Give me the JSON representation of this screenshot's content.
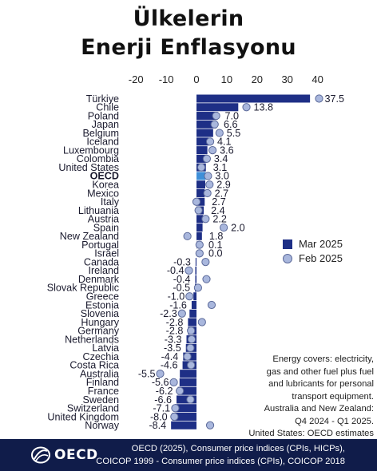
{
  "title": {
    "line1": "Ülkelerin",
    "line2": "Enerji Enflasyonu"
  },
  "chart_data": {
    "type": "bar",
    "orientation": "horizontal",
    "categories": [
      "Türkiye",
      "Chile",
      "Poland",
      "Japan",
      "Belgium",
      "Iceland",
      "Luxembourg",
      "Colombia",
      "United States",
      "OECD",
      "Korea",
      "Mexico",
      "Italy",
      "Lithuania",
      "Austria",
      "Spain",
      "New Zealand",
      "Portugal",
      "Israel",
      "Canada",
      "Ireland",
      "Denmark",
      "Slovak Republic",
      "Greece",
      "Estonia",
      "Slovenia",
      "Hungary",
      "Germany",
      "Netherlands",
      "Latvia",
      "Czechia",
      "Costa Rica",
      "Australia",
      "Finland",
      "France",
      "Sweden",
      "Switzerland",
      "United Kingdom",
      "Norway"
    ],
    "series": [
      {
        "name": "Mar 2025",
        "values": [
          37.5,
          13.8,
          7.0,
          6.6,
          5.5,
          4.1,
          3.6,
          3.4,
          3.1,
          3.0,
          2.9,
          2.7,
          2.7,
          2.4,
          2.2,
          2.0,
          1.8,
          0.1,
          0.0,
          -0.3,
          -0.4,
          -0.4,
          -0.5,
          -1.0,
          -1.6,
          -2.3,
          -2.8,
          -2.8,
          -3.3,
          -3.5,
          -4.4,
          -4.6,
          -5.5,
          -5.6,
          -6.2,
          -6.6,
          -7.1,
          -8.0,
          -8.4
        ]
      },
      {
        "name": "Feb 2025",
        "values": [
          40.5,
          16.5,
          6.5,
          6.0,
          7.6,
          4.5,
          5.3,
          3.4,
          1.6,
          3.8,
          4.3,
          3.6,
          0.0,
          0.7,
          3.0,
          9.0,
          -3.0,
          1.0,
          1.0,
          3.0,
          -2.5,
          3.3,
          0.5,
          -2.3,
          5.0,
          -4.8,
          1.8,
          -1.8,
          -1.6,
          -2.0,
          -3.0,
          -1.8,
          -12.0,
          -7.5,
          -5.5,
          -2.0,
          -7.0,
          -7.3,
          4.5
        ]
      }
    ],
    "value_labels": [
      "37.5",
      "13.8",
      "7.0",
      "6.6",
      "5.5",
      "4.1",
      "3.6",
      "3.4",
      "3.1",
      "3.0",
      "2.9",
      "2.7",
      "2.7",
      "2.4",
      "2.2",
      "2.0",
      "1.8",
      "0.1",
      "0.0",
      "-0.3",
      "-0.4",
      "-0.4",
      "-0.5",
      "-1.0",
      "-1.6",
      "-2.3",
      "-2.8",
      "-2.8",
      "-3.3",
      "-3.5",
      "-4.4",
      "-4.6",
      "-5.5",
      "-5.6",
      "-6.2",
      "-6.6",
      "-7.1",
      "-8.0",
      "-8.4"
    ],
    "highlight": "OECD",
    "x_ticks": [
      -20,
      -10,
      0,
      10,
      20,
      30,
      40
    ],
    "xlim": [
      -21,
      42
    ],
    "grid": false,
    "legend_placement": "right-middle",
    "xlabel": "",
    "ylabel": ""
  },
  "legend": {
    "bar_label": "Mar 2025",
    "dot_label": "Feb 2025"
  },
  "note": [
    "Energy covers: electricity,",
    "gas and other fuel plus fuel",
    "and lubricants for personal",
    "transport equipment.",
    "Australia and New Zealand:",
    "Q4 2024 - Q1 2025.",
    "United States: OECD estimates"
  ],
  "footer": {
    "logo_text": "OECD",
    "source_line1": "OECD (2025), Consumer price indices (CPIs, HICPs),",
    "source_line2": "COICOP 1999 - Consumer price indices (CPIs), COICOP 2018"
  },
  "colors": {
    "bar": "#1e2f86",
    "bar_highlight": "#3f8fd8",
    "dot_fill": "#a9b7dd",
    "dot_stroke": "#5c6a9a",
    "footer_bg": "#101c4a"
  }
}
